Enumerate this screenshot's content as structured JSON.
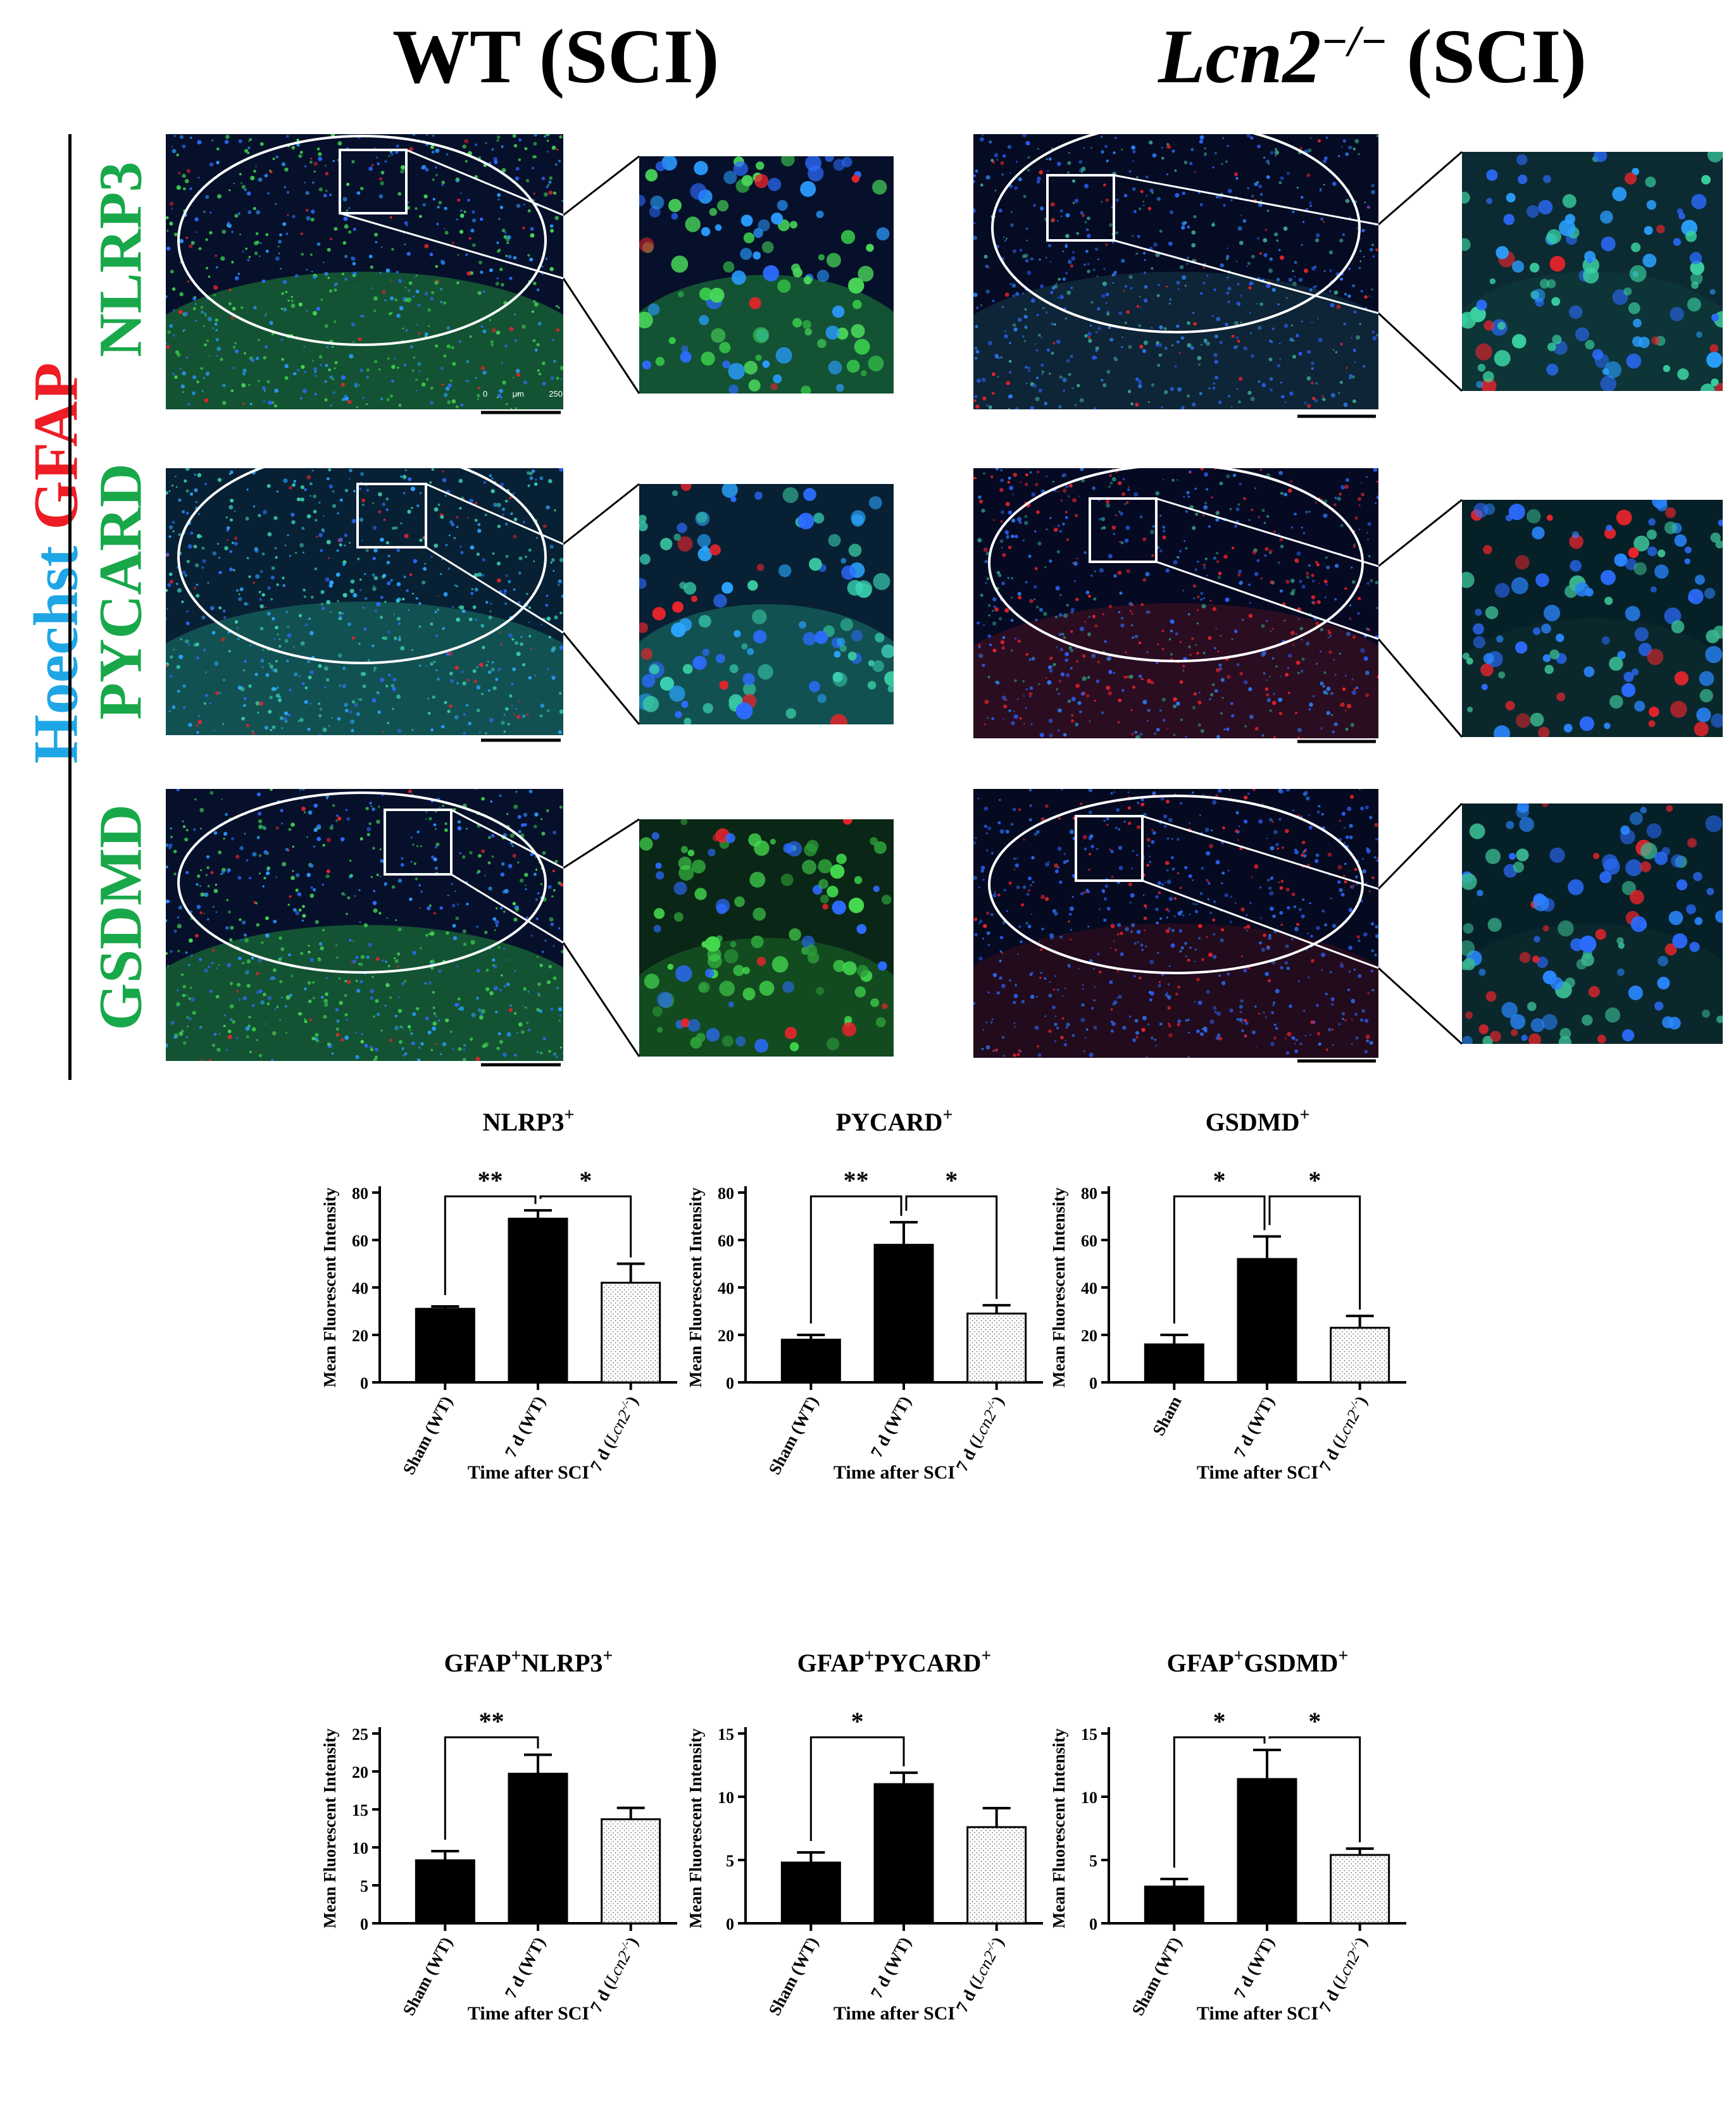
{
  "figure": {
    "column_titles": [
      {
        "main": "WT",
        "suffix": " (SCI)",
        "italic": false
      },
      {
        "main": "Lcn2",
        "sup": "−/−",
        "suffix": " (SCI)",
        "italic": true
      }
    ],
    "side_label": [
      {
        "text": "Hoechst ",
        "color": "#1ea6e6"
      },
      {
        "text": "GFAP",
        "color": "#ee1c24"
      }
    ],
    "row_labels": [
      "NLRP3",
      "PYCARD",
      "GSDMD"
    ],
    "scale_bar": {
      "zero": "0",
      "unit": "μm",
      "max": "250"
    },
    "colors": {
      "hoechst": "#1ea6e6",
      "gfap": "#ee1c24",
      "marker": "#18a84a",
      "solid_bar": "#000000",
      "dotted_bar": "#ffffff"
    }
  },
  "charts": [
    {
      "title": "NLRP3",
      "title_sup": "+",
      "chart_data": {
        "type": "bar",
        "categories": [
          "Sham (WT)",
          "7 d (WT)",
          "7 d (Lcn2-/-)"
        ],
        "category_parts": [
          [
            "Sham (WT)"
          ],
          [
            "7 d (WT)"
          ],
          [
            "7 d (",
            "Lcn2",
            "-/-",
            ")"
          ]
        ],
        "values": [
          31,
          69,
          42
        ],
        "errors": [
          1,
          3.5,
          8
        ],
        "ylabel": "Mean Fluorescent Intensity",
        "xlabel": "Time after SCI",
        "ylim": [
          0,
          80
        ],
        "yticks": [
          0,
          20,
          40,
          60,
          80
        ],
        "significance": [
          {
            "from": 0,
            "to": 1,
            "label": "**"
          },
          {
            "from": 1,
            "to": 2,
            "label": "*"
          }
        ]
      }
    },
    {
      "title": "PYCARD",
      "title_sup": "+",
      "chart_data": {
        "type": "bar",
        "categories": [
          "Sham (WT)",
          "7 d (WT)",
          "7 d (Lcn2-/-)"
        ],
        "category_parts": [
          [
            "Sham (WT)"
          ],
          [
            "7 d (WT)"
          ],
          [
            "7 d (",
            "Lcn2",
            "-/-",
            ")"
          ]
        ],
        "values": [
          18,
          58,
          29
        ],
        "errors": [
          2,
          9.5,
          3.5
        ],
        "ylabel": "Mean Fluorescent Intensity",
        "xlabel": "Time after SCI",
        "ylim": [
          0,
          80
        ],
        "yticks": [
          0,
          20,
          40,
          60,
          80
        ],
        "significance": [
          {
            "from": 0,
            "to": 1,
            "label": "**"
          },
          {
            "from": 1,
            "to": 2,
            "label": "*"
          }
        ]
      }
    },
    {
      "title": "GSDMD",
      "title_sup": "+",
      "chart_data": {
        "type": "bar",
        "categories": [
          "Sham",
          "7 d (WT)",
          "7 d (Lcn2-/-)"
        ],
        "category_parts": [
          [
            "Sham"
          ],
          [
            "7 d (WT)"
          ],
          [
            "7 d (",
            "Lcn2",
            "-/-",
            ")"
          ]
        ],
        "values": [
          16,
          52,
          23
        ],
        "errors": [
          4,
          9.5,
          5
        ],
        "ylabel": "Mean Fluorescent Intensity",
        "xlabel": "Time after SCI",
        "ylim": [
          0,
          80
        ],
        "yticks": [
          0,
          20,
          40,
          60,
          80
        ],
        "significance": [
          {
            "from": 0,
            "to": 1,
            "label": "*"
          },
          {
            "from": 1,
            "to": 2,
            "label": "*"
          }
        ]
      }
    },
    {
      "title": "GFAP",
      "title_sup": "+",
      "title2": "NLRP3",
      "title2_sup": "+",
      "chart_data": {
        "type": "bar",
        "categories": [
          "Sham (WT)",
          "7 d (WT)",
          "7 d (Lcn2-/-)"
        ],
        "category_parts": [
          [
            "Sham (WT)"
          ],
          [
            "7 d (WT)"
          ],
          [
            "7 d (",
            "Lcn2",
            "-/-",
            ")"
          ]
        ],
        "values": [
          8.3,
          19.7,
          13.7
        ],
        "errors": [
          1.2,
          2.5,
          1.5
        ],
        "ylabel": "Mean Fluorescent Intensity",
        "xlabel": "Time after SCI",
        "ylim": [
          0,
          25
        ],
        "yticks": [
          0,
          5,
          10,
          15,
          20,
          25
        ],
        "significance": [
          {
            "from": 0,
            "to": 1,
            "label": "**"
          }
        ]
      }
    },
    {
      "title": "GFAP",
      "title_sup": "+",
      "title2": "PYCARD",
      "title2_sup": "+",
      "chart_data": {
        "type": "bar",
        "categories": [
          "Sham (WT)",
          "7 d (WT)",
          "7 d (Lcn2-/-)"
        ],
        "category_parts": [
          [
            "Sham (WT)"
          ],
          [
            "7 d (WT)"
          ],
          [
            "7 d (",
            "Lcn2",
            "-/-",
            ")"
          ]
        ],
        "values": [
          4.8,
          11,
          7.6
        ],
        "errors": [
          0.8,
          0.9,
          1.5
        ],
        "ylabel": "Mean Fluorescent Intensity",
        "xlabel": "Time after SCI",
        "ylim": [
          0,
          15
        ],
        "yticks": [
          0,
          5,
          10,
          15
        ],
        "significance": [
          {
            "from": 0,
            "to": 1,
            "label": "*"
          }
        ]
      }
    },
    {
      "title": "GFAP",
      "title_sup": "+",
      "title2": "GSDMD",
      "title2_sup": "+",
      "chart_data": {
        "type": "bar",
        "categories": [
          "Sham (WT)",
          "7 d (WT)",
          "7 d (Lcn2-/-)"
        ],
        "category_parts": [
          [
            "Sham (WT)"
          ],
          [
            "7 d (WT)"
          ],
          [
            "7 d (",
            "Lcn2",
            "-/-",
            ")"
          ]
        ],
        "values": [
          2.9,
          11.4,
          5.4
        ],
        "errors": [
          0.6,
          2.3,
          0.5
        ],
        "ylabel": "Mean Fluorescent Intensity",
        "xlabel": "Time after SCI",
        "ylim": [
          0,
          15
        ],
        "yticks": [
          0,
          5,
          10,
          15
        ],
        "significance": [
          {
            "from": 0,
            "to": 1,
            "label": "*"
          },
          {
            "from": 1,
            "to": 2,
            "label": "*"
          }
        ]
      }
    }
  ]
}
